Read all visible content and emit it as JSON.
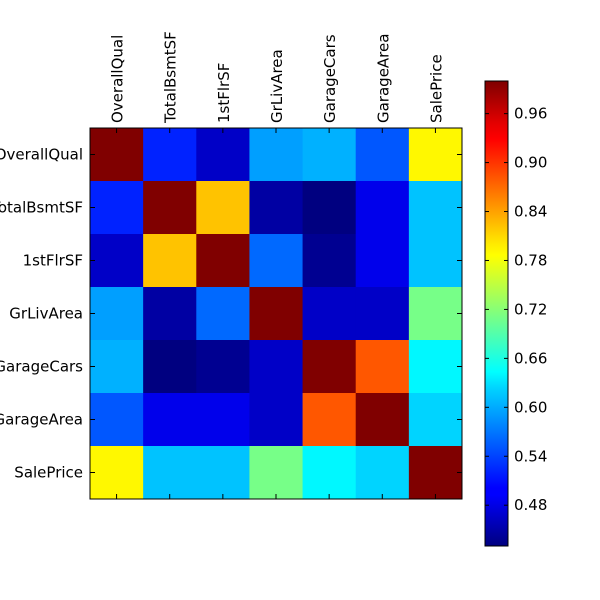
{
  "chart_data": {
    "type": "heatmap",
    "title": "",
    "xlabel": "",
    "ylabel": "",
    "x_categories": [
      "OverallQual",
      "TotalBsmtSF",
      "1stFlrSF",
      "GrLivArea",
      "GarageCars",
      "GarageArea",
      "SalePrice"
    ],
    "y_categories": [
      "OverallQual",
      "TotalBsmtSF",
      "1stFlrSF",
      "GrLivArea",
      "GarageCars",
      "GarageArea",
      "SalePrice"
    ],
    "x_axis_position": "top",
    "values": [
      [
        1.0,
        0.52,
        0.47,
        0.59,
        0.6,
        0.55,
        0.79
      ],
      [
        0.52,
        1.0,
        0.82,
        0.45,
        0.43,
        0.49,
        0.61
      ],
      [
        0.47,
        0.82,
        1.0,
        0.56,
        0.44,
        0.49,
        0.61
      ],
      [
        0.59,
        0.45,
        0.56,
        1.0,
        0.47,
        0.47,
        0.71
      ],
      [
        0.6,
        0.43,
        0.44,
        0.47,
        1.0,
        0.88,
        0.64
      ],
      [
        0.55,
        0.49,
        0.49,
        0.47,
        0.88,
        1.0,
        0.62
      ],
      [
        0.79,
        0.61,
        0.61,
        0.71,
        0.64,
        0.62,
        1.0
      ]
    ],
    "colormap": "jet",
    "vmin": 0.43,
    "vmax": 1.0,
    "colorbar": {
      "position": "right",
      "ticks": [
        0.48,
        0.54,
        0.6,
        0.66,
        0.72,
        0.78,
        0.84,
        0.9,
        0.96
      ],
      "tick_labels": [
        "0.48",
        "0.54",
        "0.60",
        "0.66",
        "0.72",
        "0.78",
        "0.84",
        "0.90",
        "0.96"
      ]
    },
    "grid": false
  }
}
